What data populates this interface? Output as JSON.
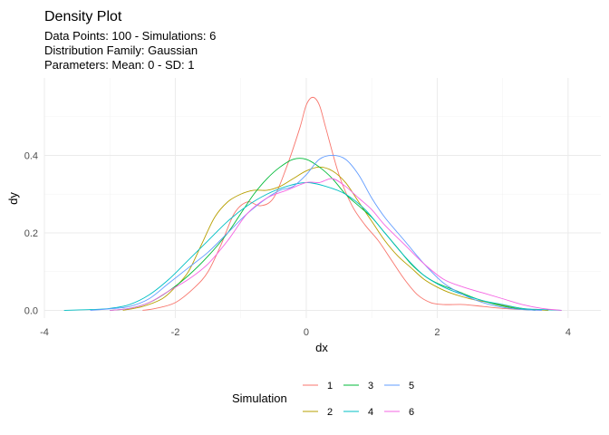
{
  "chart_data": {
    "type": "line",
    "title": "Density Plot",
    "subtitle_lines": [
      "Data Points: 100 - Simulations: 6",
      "Distribution Family: Gaussian",
      "Parameters: Mean: 0 - SD: 1"
    ],
    "xlabel": "dx",
    "ylabel": "dy",
    "xlim": [
      -4.0,
      4.5
    ],
    "ylim": [
      -0.02,
      0.6
    ],
    "x_ticks": [
      -4,
      -2,
      0,
      2,
      4
    ],
    "x_tick_labels": [
      "-4",
      "-2",
      "0",
      "2",
      "4"
    ],
    "y_ticks": [
      0.0,
      0.2,
      0.4
    ],
    "y_tick_labels": [
      "0.0",
      "0.2",
      "0.4"
    ],
    "grid": true,
    "legend": {
      "title": "Simulation",
      "position": "bottom"
    },
    "series": [
      {
        "name": "1",
        "color": "#F8766D",
        "x": [
          -2.5,
          -2.3,
          -2.0,
          -1.7,
          -1.5,
          -1.3,
          -1.1,
          -0.9,
          -0.7,
          -0.5,
          -0.3,
          -0.1,
          0.0,
          0.1,
          0.2,
          0.3,
          0.5,
          0.7,
          0.9,
          1.1,
          1.3,
          1.5,
          1.7,
          1.9,
          2.1,
          2.4,
          2.7,
          3.0,
          3.3,
          3.6
        ],
        "y": [
          0.0,
          0.005,
          0.02,
          0.06,
          0.1,
          0.17,
          0.25,
          0.28,
          0.27,
          0.29,
          0.37,
          0.47,
          0.53,
          0.55,
          0.53,
          0.47,
          0.35,
          0.27,
          0.22,
          0.18,
          0.13,
          0.08,
          0.04,
          0.02,
          0.015,
          0.015,
          0.01,
          0.005,
          0.002,
          0.0
        ]
      },
      {
        "name": "2",
        "color": "#B79F00",
        "x": [
          -2.8,
          -2.5,
          -2.2,
          -2.0,
          -1.8,
          -1.6,
          -1.4,
          -1.2,
          -1.0,
          -0.8,
          -0.6,
          -0.4,
          -0.2,
          0.0,
          0.2,
          0.4,
          0.6,
          0.8,
          1.0,
          1.2,
          1.4,
          1.6,
          1.8,
          2.0,
          2.2,
          2.5,
          2.8,
          3.1,
          3.4,
          3.7
        ],
        "y": [
          0.0,
          0.01,
          0.03,
          0.06,
          0.1,
          0.17,
          0.24,
          0.28,
          0.3,
          0.31,
          0.31,
          0.32,
          0.34,
          0.36,
          0.37,
          0.36,
          0.33,
          0.28,
          0.23,
          0.18,
          0.14,
          0.11,
          0.08,
          0.06,
          0.045,
          0.03,
          0.02,
          0.01,
          0.003,
          0.0
        ]
      },
      {
        "name": "3",
        "color": "#00BA38",
        "x": [
          -3.0,
          -2.7,
          -2.4,
          -2.1,
          -1.8,
          -1.5,
          -1.2,
          -1.0,
          -0.8,
          -0.6,
          -0.4,
          -0.2,
          0.0,
          0.2,
          0.4,
          0.6,
          0.8,
          1.0,
          1.2,
          1.4,
          1.6,
          1.8,
          2.0,
          2.3,
          2.6,
          2.9,
          3.2,
          3.5
        ],
        "y": [
          0.0,
          0.005,
          0.02,
          0.05,
          0.09,
          0.14,
          0.2,
          0.25,
          0.3,
          0.34,
          0.37,
          0.39,
          0.39,
          0.37,
          0.34,
          0.3,
          0.27,
          0.24,
          0.2,
          0.16,
          0.12,
          0.09,
          0.07,
          0.05,
          0.03,
          0.015,
          0.005,
          0.0
        ]
      },
      {
        "name": "4",
        "color": "#00BFC4",
        "x": [
          -3.7,
          -3.3,
          -3.0,
          -2.7,
          -2.4,
          -2.1,
          -1.8,
          -1.5,
          -1.2,
          -0.9,
          -0.6,
          -0.3,
          0.0,
          0.3,
          0.6,
          0.9,
          1.2,
          1.5,
          1.8,
          2.1,
          2.4,
          2.7,
          3.0,
          3.3,
          3.6,
          3.9
        ],
        "y": [
          0.0,
          0.002,
          0.005,
          0.015,
          0.04,
          0.08,
          0.13,
          0.18,
          0.23,
          0.27,
          0.3,
          0.32,
          0.33,
          0.32,
          0.3,
          0.26,
          0.2,
          0.14,
          0.09,
          0.06,
          0.04,
          0.025,
          0.015,
          0.005,
          0.002,
          0.0
        ]
      },
      {
        "name": "5",
        "color": "#619CFF",
        "x": [
          -3.3,
          -3.0,
          -2.7,
          -2.4,
          -2.1,
          -1.8,
          -1.5,
          -1.2,
          -0.9,
          -0.6,
          -0.4,
          -0.2,
          0.0,
          0.2,
          0.4,
          0.6,
          0.8,
          1.0,
          1.2,
          1.5,
          1.8,
          2.1,
          2.4,
          2.7,
          3.0,
          3.3,
          3.6
        ],
        "y": [
          0.0,
          0.004,
          0.01,
          0.03,
          0.07,
          0.11,
          0.15,
          0.2,
          0.25,
          0.29,
          0.31,
          0.32,
          0.35,
          0.39,
          0.4,
          0.39,
          0.35,
          0.29,
          0.24,
          0.18,
          0.12,
          0.07,
          0.04,
          0.02,
          0.008,
          0.002,
          0.0
        ]
      },
      {
        "name": "6",
        "color": "#F564E3",
        "x": [
          -3.0,
          -2.7,
          -2.4,
          -2.1,
          -1.8,
          -1.5,
          -1.2,
          -0.9,
          -0.6,
          -0.3,
          0.0,
          0.2,
          0.4,
          0.6,
          0.8,
          1.0,
          1.2,
          1.5,
          1.8,
          2.1,
          2.4,
          2.7,
          3.0,
          3.3,
          3.6,
          3.9
        ],
        "y": [
          0.0,
          0.005,
          0.02,
          0.05,
          0.08,
          0.12,
          0.18,
          0.25,
          0.29,
          0.31,
          0.33,
          0.33,
          0.34,
          0.32,
          0.29,
          0.26,
          0.22,
          0.17,
          0.12,
          0.08,
          0.06,
          0.045,
          0.03,
          0.015,
          0.005,
          0.0
        ]
      }
    ]
  }
}
